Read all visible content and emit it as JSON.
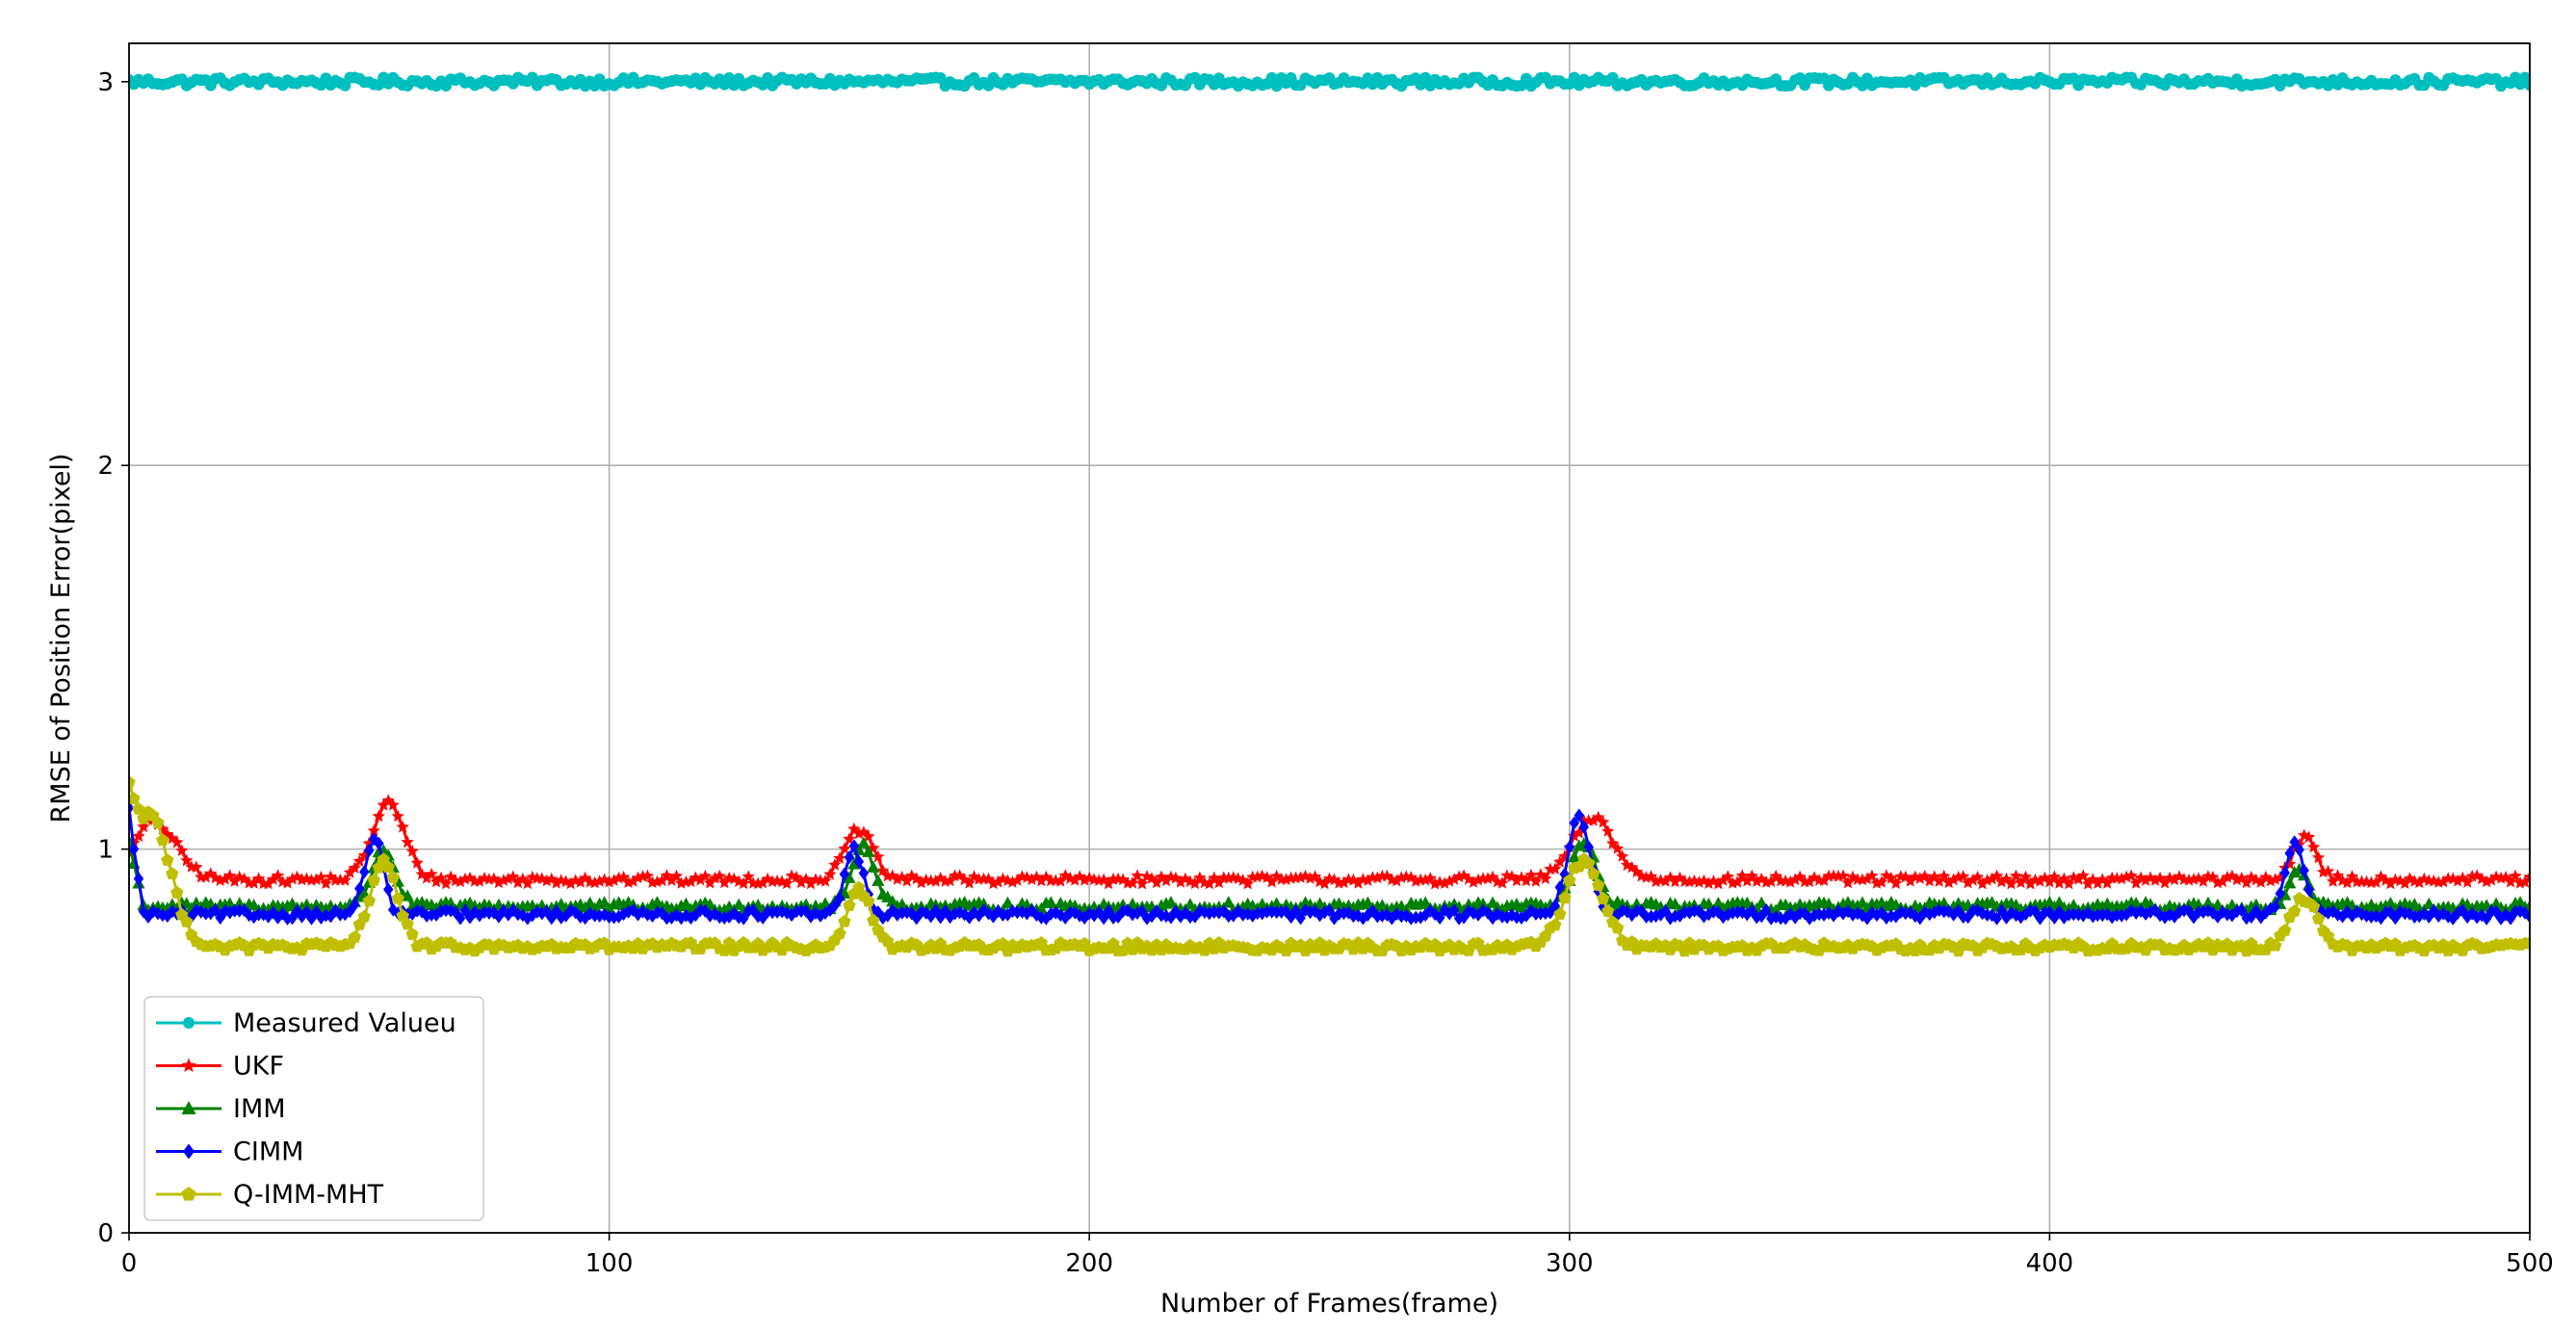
{
  "chart_data": {
    "type": "line",
    "title": "",
    "xlabel": "Number of Frames(frame)",
    "ylabel": "RMSE of Position Error(pixel)",
    "xlim": [
      0,
      500
    ],
    "ylim": [
      0,
      3.1
    ],
    "xticks": [
      0,
      100,
      200,
      300,
      400,
      500
    ],
    "yticks": [
      0,
      1,
      2,
      3
    ],
    "xtick_labels": [
      "0",
      "100",
      "200",
      "300",
      "400",
      "500"
    ],
    "ytick_labels": [
      "0",
      "1",
      "2",
      "3"
    ],
    "grid": true,
    "legend_position": "lower-left",
    "series": [
      {
        "name": "Measured Valueu",
        "color": "#00bfbf",
        "marker": "circle",
        "baseline": 3.0,
        "peaks": []
      },
      {
        "name": "UKF",
        "color": "#ff0000",
        "marker": "star",
        "baseline": 0.92,
        "start_value": 1.0,
        "peaks": [
          {
            "x": 5,
            "y": 1.07,
            "width": 10
          },
          {
            "x": 54,
            "y": 1.12,
            "width": 7
          },
          {
            "x": 152,
            "y": 1.05,
            "width": 6
          },
          {
            "x": 305,
            "y": 1.08,
            "width": 9
          },
          {
            "x": 453,
            "y": 1.03,
            "width": 5
          }
        ]
      },
      {
        "name": "IMM",
        "color": "#008000",
        "marker": "triangle",
        "baseline": 0.85,
        "start_value": 1.02,
        "peaks": [
          {
            "x": 53,
            "y": 1.0,
            "width": 5
          },
          {
            "x": 153,
            "y": 1.01,
            "width": 5
          },
          {
            "x": 303,
            "y": 1.02,
            "width": 5
          },
          {
            "x": 452,
            "y": 0.95,
            "width": 4
          }
        ]
      },
      {
        "name": "CIMM",
        "color": "#0000ff",
        "marker": "diamond",
        "baseline": 0.83,
        "start_value": 1.1,
        "peaks": [
          {
            "x": 51,
            "y": 1.03,
            "width": 4
          },
          {
            "x": 151,
            "y": 1.0,
            "width": 4
          },
          {
            "x": 302,
            "y": 1.08,
            "width": 5
          },
          {
            "x": 451,
            "y": 1.02,
            "width": 4
          }
        ]
      },
      {
        "name": "Q-IMM-MHT",
        "color": "#bfbf00",
        "marker": "pentagon",
        "baseline": 0.745,
        "start_value": 1.18,
        "peaks": [
          {
            "x": 4,
            "y": 1.1,
            "width": 9
          },
          {
            "x": 53,
            "y": 0.97,
            "width": 6
          },
          {
            "x": 152,
            "y": 0.9,
            "width": 5
          },
          {
            "x": 303,
            "y": 0.97,
            "width": 8
          },
          {
            "x": 453,
            "y": 0.87,
            "width": 6
          }
        ]
      }
    ]
  }
}
